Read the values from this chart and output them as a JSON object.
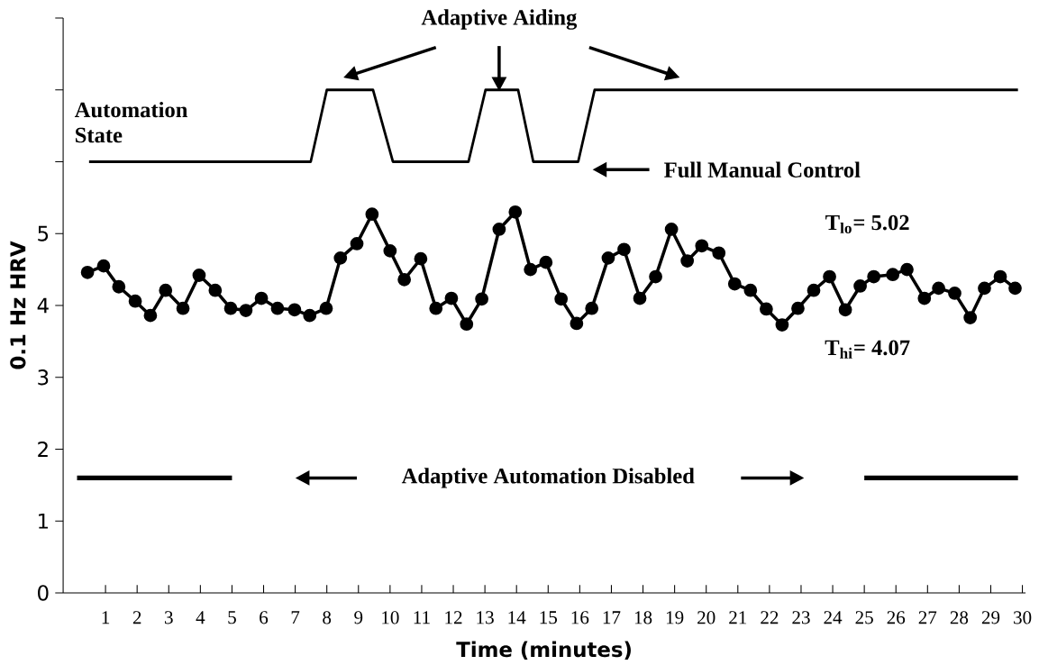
{
  "chart_data": {
    "type": "line",
    "xlabel": "Time (minutes)",
    "ylabel": "0.1 Hz HRV",
    "xlim": [
      -0.34,
      30.1
    ],
    "ylim": [
      0,
      8
    ],
    "xticks": [
      1,
      2,
      3,
      4,
      5,
      6,
      7,
      8,
      9,
      10,
      11,
      12,
      13,
      14,
      15,
      16,
      17,
      18,
      19,
      20,
      21,
      22,
      23,
      24,
      25,
      26,
      27,
      28,
      29,
      30
    ],
    "yticks": [
      0,
      1,
      2,
      3,
      4,
      5,
      {
        "value": 6,
        "label": null
      },
      {
        "value": 7,
        "label": null
      },
      {
        "value": 8,
        "label": null
      }
    ],
    "series": [
      {
        "color": "#000000",
        "marker": "circle",
        "x": [
          0.43,
          0.94,
          1.42,
          1.94,
          2.42,
          2.9,
          3.45,
          3.96,
          4.47,
          4.96,
          5.44,
          5.93,
          6.44,
          6.98,
          7.46,
          7.98,
          8.43,
          8.95,
          9.43,
          10.0,
          10.45,
          10.97,
          11.45,
          11.94,
          12.42,
          12.9,
          13.45,
          13.96,
          14.44,
          14.93,
          15.41,
          15.9,
          16.38,
          16.9,
          17.4,
          17.9,
          18.4,
          18.9,
          19.4,
          19.86,
          20.4,
          20.9,
          21.4,
          21.9,
          22.4,
          22.9,
          23.4,
          23.9,
          24.4,
          24.87,
          25.3,
          25.9,
          26.35,
          26.9,
          27.35,
          27.86,
          28.35,
          28.8,
          29.3,
          29.77
        ],
        "values": [
          4.46,
          4.55,
          4.26,
          4.06,
          3.86,
          4.21,
          3.96,
          4.42,
          4.21,
          3.96,
          3.93,
          4.1,
          3.96,
          3.94,
          3.86,
          3.96,
          4.66,
          4.86,
          5.27,
          4.76,
          4.36,
          4.65,
          3.96,
          4.1,
          3.74,
          4.09,
          5.06,
          5.3,
          4.5,
          4.6,
          4.09,
          3.75,
          3.96,
          4.66,
          4.78,
          4.1,
          4.4,
          5.06,
          4.62,
          4.83,
          4.73,
          4.3,
          4.21,
          3.95,
          3.73,
          3.96,
          4.21,
          4.4,
          3.94,
          4.27,
          4.4,
          4.43,
          4.5,
          4.1,
          4.24,
          4.17,
          3.83,
          4.24,
          4.4,
          4.24
        ]
      },
      {
        "color": "#000000",
        "marker": "none",
        "x": [
          0.48,
          7.49,
          8.0,
          9.46,
          10.09,
          12.48,
          13.02,
          14.05,
          14.53,
          15.95,
          16.47,
          29.86
        ],
        "values": [
          6,
          6,
          7,
          7,
          6,
          6,
          7,
          7,
          6,
          6,
          7,
          7
        ]
      },
      {
        "color": "#000000",
        "marker": "none",
        "x": [
          0.1,
          5.0,
          15.0,
          25.0,
          29.86
        ],
        "values": [
          1.6,
          1.6,
          null,
          1.6,
          1.6
        ]
      }
    ],
    "annotations": [
      "Adaptive Aiding",
      "Automation State",
      "Full Manual Control",
      "T$_{lo}$= 5.02",
      "T$_{hi}$= 4.07",
      "Adaptive Automation Disabled"
    ]
  }
}
